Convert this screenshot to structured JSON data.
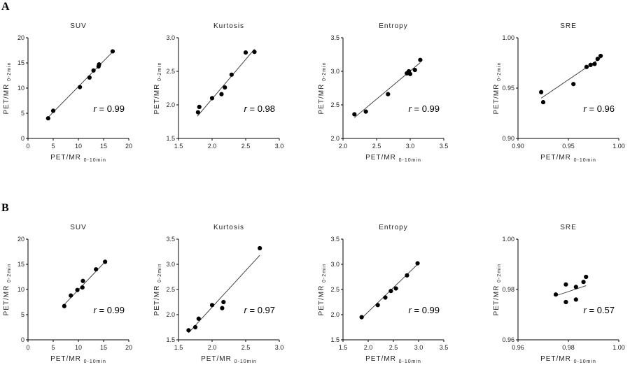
{
  "panels": [
    {
      "label": "A",
      "chart_data": [
        {
          "type": "scatter",
          "title": "SUV",
          "xlabel": {
            "main": "PET/MR",
            "sub": "0-10min"
          },
          "ylabel": {
            "main": "PET/MR",
            "sub": "0-2min"
          },
          "xlim": [
            0,
            20
          ],
          "ylim": [
            0,
            20
          ],
          "xticks": [
            0,
            5,
            10,
            15,
            20
          ],
          "yticks": [
            0,
            5,
            10,
            15,
            20
          ],
          "xtick_labels": [
            "0",
            "5",
            "10",
            "15",
            "20"
          ],
          "ytick_labels": [
            "0",
            "5",
            "10",
            "15",
            "20"
          ],
          "points": [
            [
              4.0,
              4.0
            ],
            [
              5.0,
              5.5
            ],
            [
              10.3,
              10.2
            ],
            [
              12.2,
              12.1
            ],
            [
              13.0,
              13.5
            ],
            [
              14.0,
              14.3
            ],
            [
              14.1,
              14.7
            ],
            [
              16.8,
              17.3
            ]
          ],
          "fit": [
            [
              4.0,
              4.2
            ],
            [
              16.8,
              17.2
            ]
          ],
          "r_label": "r",
          "r_value": "= 0.99",
          "r_position": "bottom-right"
        },
        {
          "type": "scatter",
          "title": "Kurtosis",
          "xlabel": {
            "main": "",
            "sub": ""
          },
          "ylabel": {
            "main": "PET/MR",
            "sub": "0-2min"
          },
          "xlim": [
            1.5,
            3.0
          ],
          "ylim": [
            1.5,
            3.0
          ],
          "xticks": [
            1.5,
            2.0,
            2.5,
            3.0
          ],
          "yticks": [
            1.5,
            2.0,
            2.5,
            3.0
          ],
          "xtick_labels": [
            "1.5",
            "2.0",
            "2.5",
            "3.0"
          ],
          "ytick_labels": [
            "1.5",
            "2.0",
            "2.5",
            "3.0"
          ],
          "points": [
            [
              1.79,
              1.89
            ],
            [
              1.81,
              1.97
            ],
            [
              2.0,
              2.1
            ],
            [
              2.14,
              2.16
            ],
            [
              2.19,
              2.26
            ],
            [
              2.29,
              2.45
            ],
            [
              2.5,
              2.78
            ],
            [
              2.63,
              2.79
            ]
          ],
          "fit": [
            [
              1.78,
              1.83
            ],
            [
              2.63,
              2.83
            ]
          ],
          "r_label": "r",
          "r_value": "= 0.98",
          "r_position": "bottom-right"
        },
        {
          "type": "scatter",
          "title": "Entropy",
          "xlabel": {
            "main": "PET/MR",
            "sub": "0-10min"
          },
          "ylabel": {
            "main": "PET/MR",
            "sub": "0-2min"
          },
          "xlim": [
            2.0,
            3.5
          ],
          "ylim": [
            2.0,
            3.5
          ],
          "xticks": [
            2.0,
            2.5,
            3.0,
            3.5
          ],
          "yticks": [
            2.0,
            2.5,
            3.0,
            3.5
          ],
          "xtick_labels": [
            "2.0",
            "2.5",
            "3.0",
            "3.5"
          ],
          "ytick_labels": [
            "2.0",
            "2.5",
            "3.0",
            "3.5"
          ],
          "points": [
            [
              2.17,
              2.36
            ],
            [
              2.34,
              2.4
            ],
            [
              2.67,
              2.66
            ],
            [
              2.95,
              2.97
            ],
            [
              2.98,
              3.0
            ],
            [
              3.0,
              2.96
            ],
            [
              3.07,
              3.02
            ],
            [
              3.15,
              3.17
            ]
          ],
          "fit": [
            [
              2.17,
              2.31
            ],
            [
              3.15,
              3.13
            ]
          ],
          "r_label": "r",
          "r_value": "= 0.99",
          "r_position": "bottom-right"
        },
        {
          "type": "scatter",
          "title": "SRE",
          "xlabel": {
            "main": "PET/MR",
            "sub": "0-10min"
          },
          "ylabel": {
            "main": "PET/MR",
            "sub": "0-2min"
          },
          "xlim": [
            0.9,
            1.0
          ],
          "ylim": [
            0.9,
            1.0
          ],
          "xticks": [
            0.9,
            0.95,
            1.0
          ],
          "yticks": [
            0.9,
            0.95,
            1.0
          ],
          "xtick_labels": [
            "0.90",
            "0.95",
            "1.00"
          ],
          "ytick_labels": [
            "0.90",
            "0.95",
            "1.00"
          ],
          "points": [
            [
              0.923,
              0.946
            ],
            [
              0.925,
              0.936
            ],
            [
              0.955,
              0.954
            ],
            [
              0.968,
              0.971
            ],
            [
              0.972,
              0.973
            ],
            [
              0.976,
              0.974
            ],
            [
              0.979,
              0.979
            ],
            [
              0.982,
              0.982
            ]
          ],
          "fit": [
            [
              0.923,
              0.94
            ],
            [
              0.982,
              0.98
            ]
          ],
          "r_label": "r",
          "r_value": "= 0.96",
          "r_position": "bottom-right"
        }
      ]
    },
    {
      "label": "B",
      "chart_data": [
        {
          "type": "scatter",
          "title": "SUV",
          "xlabel": {
            "main": "PET/MR",
            "sub": "0-10min"
          },
          "ylabel": {
            "main": "PET/MR",
            "sub": "0-2min"
          },
          "xlim": [
            0,
            20
          ],
          "ylim": [
            0,
            20
          ],
          "xticks": [
            0,
            5,
            10,
            15,
            20
          ],
          "yticks": [
            0,
            5,
            10,
            15,
            20
          ],
          "xtick_labels": [
            "0",
            "5",
            "10",
            "15",
            "20"
          ],
          "ytick_labels": [
            "0",
            "5",
            "10",
            "15",
            "20"
          ],
          "points": [
            [
              7.2,
              6.7
            ],
            [
              8.5,
              8.8
            ],
            [
              9.8,
              9.9
            ],
            [
              10.8,
              10.4
            ],
            [
              10.9,
              11.7
            ],
            [
              13.5,
              14.0
            ],
            [
              15.3,
              15.5
            ]
          ],
          "fit": [
            [
              7.2,
              7.0
            ],
            [
              15.3,
              15.5
            ]
          ],
          "r_label": "r",
          "r_value": "= 0.99",
          "r_position": "bottom-right"
        },
        {
          "type": "scatter",
          "title": "Kurtosis",
          "xlabel": {
            "main": "PET/MR",
            "sub": "0-10min"
          },
          "ylabel": {
            "main": "PET/MR",
            "sub": "0-2min"
          },
          "xlim": [
            1.5,
            3.0
          ],
          "ylim": [
            1.5,
            3.5
          ],
          "xticks": [
            1.5,
            2.0,
            2.5,
            3.0
          ],
          "yticks": [
            1.5,
            2.0,
            2.5,
            3.0,
            3.5
          ],
          "xtick_labels": [
            "1.5",
            "2.0",
            "2.5",
            "3.0"
          ],
          "ytick_labels": [
            "1.5",
            "2.0",
            "2.5",
            "3.0",
            "3.5"
          ],
          "points": [
            [
              1.65,
              1.69
            ],
            [
              1.75,
              1.75
            ],
            [
              1.8,
              1.92
            ],
            [
              2.0,
              2.19
            ],
            [
              2.15,
              2.13
            ],
            [
              2.17,
              2.25
            ],
            [
              2.71,
              3.32
            ]
          ],
          "fit": [
            [
              1.65,
              1.64
            ],
            [
              2.71,
              3.18
            ]
          ],
          "r_label": "r",
          "r_value": "= 0.97",
          "r_position": "bottom-right"
        },
        {
          "type": "scatter",
          "title": "Entropy",
          "xlabel": {
            "main": "PET/MR",
            "sub": "0-10min"
          },
          "ylabel": {
            "main": "PET/MR",
            "sub": "0-2min"
          },
          "xlim": [
            1.5,
            3.5
          ],
          "ylim": [
            1.5,
            3.5
          ],
          "xticks": [
            1.5,
            2.0,
            2.5,
            3.0,
            3.5
          ],
          "yticks": [
            1.5,
            2.0,
            2.5,
            3.0,
            3.5
          ],
          "xtick_labels": [
            "1.5",
            "2.0",
            "2.5",
            "3.0",
            "3.5"
          ],
          "ytick_labels": [
            "1.5",
            "2.0",
            "2.5",
            "3.0",
            "3.5"
          ],
          "points": [
            [
              1.87,
              1.95
            ],
            [
              2.19,
              2.19
            ],
            [
              2.34,
              2.34
            ],
            [
              2.45,
              2.47
            ],
            [
              2.55,
              2.52
            ],
            [
              2.77,
              2.78
            ],
            [
              2.98,
              3.02
            ]
          ],
          "fit": [
            [
              1.87,
              1.93
            ],
            [
              2.98,
              3.0
            ]
          ],
          "r_label": "r",
          "r_value": "= 0.99",
          "r_position": "bottom-right"
        },
        {
          "type": "scatter",
          "title": "SRE",
          "xlabel": {
            "main": "PET/MR",
            "sub": "0-10min"
          },
          "ylabel": {
            "main": "PET/MR",
            "sub": "0-2min"
          },
          "xlim": [
            0.96,
            1.0
          ],
          "ylim": [
            0.96,
            1.0
          ],
          "xticks": [
            0.96,
            0.98,
            1.0
          ],
          "yticks": [
            0.96,
            0.98,
            1.0
          ],
          "xtick_labels": [
            "0.96",
            "0.98",
            "1.00"
          ],
          "ytick_labels": [
            "0.96",
            "0.98",
            "1.00"
          ],
          "points": [
            [
              0.975,
              0.978
            ],
            [
              0.979,
              0.982
            ],
            [
              0.979,
              0.975
            ],
            [
              0.983,
              0.981
            ],
            [
              0.983,
              0.976
            ],
            [
              0.986,
              0.983
            ],
            [
              0.987,
              0.985
            ]
          ],
          "fit": [
            [
              0.975,
              0.9775
            ],
            [
              0.987,
              0.9815
            ]
          ],
          "r_label": "r",
          "r_value": "= 0.57",
          "r_position": "bottom-right"
        }
      ]
    }
  ]
}
